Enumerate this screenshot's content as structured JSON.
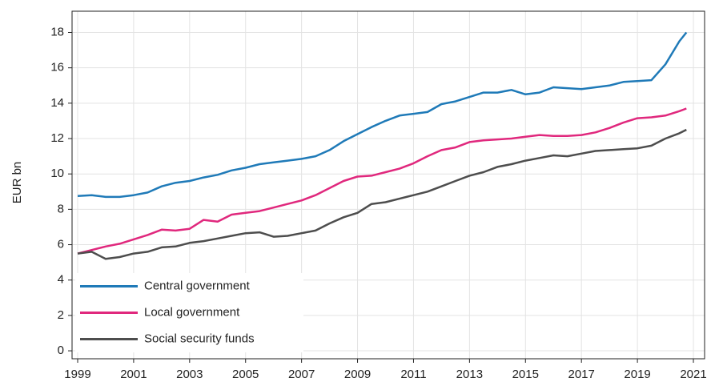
{
  "chart_data": {
    "type": "line",
    "y_label": "EUR bn",
    "x": [
      1999,
      1999.5,
      2000,
      2000.5,
      2001,
      2001.5,
      2002,
      2002.5,
      2003,
      2003.5,
      2004,
      2004.5,
      2005,
      2005.5,
      2006,
      2006.5,
      2007,
      2007.5,
      2008,
      2008.5,
      2009,
      2009.5,
      2010,
      2010.5,
      2011,
      2011.5,
      2012,
      2012.5,
      2013,
      2013.5,
      2014,
      2014.5,
      2015,
      2015.5,
      2016,
      2016.5,
      2017,
      2017.5,
      2018,
      2018.5,
      2019,
      2019.5,
      2020,
      2020.5,
      2020.75
    ],
    "series": [
      {
        "name": "Central government",
        "color": "#1f7ab8",
        "values": [
          8.75,
          8.8,
          8.7,
          8.7,
          8.8,
          8.95,
          9.3,
          9.5,
          9.6,
          9.8,
          9.95,
          10.2,
          10.35,
          10.55,
          10.65,
          10.75,
          10.85,
          11.0,
          11.35,
          11.85,
          12.25,
          12.65,
          13.0,
          13.3,
          13.4,
          13.5,
          13.95,
          14.1,
          14.35,
          14.6,
          14.6,
          14.75,
          14.5,
          14.6,
          14.9,
          14.85,
          14.8,
          14.9,
          15.0,
          15.2,
          15.25,
          15.3,
          16.2,
          17.5,
          18.0
        ]
      },
      {
        "name": "Local government",
        "color": "#e0287d",
        "values": [
          5.5,
          5.7,
          5.9,
          6.05,
          6.3,
          6.55,
          6.85,
          6.8,
          6.9,
          7.4,
          7.3,
          7.7,
          7.8,
          7.9,
          8.1,
          8.3,
          8.5,
          8.8,
          9.2,
          9.6,
          9.85,
          9.9,
          10.1,
          10.3,
          10.6,
          11.0,
          11.35,
          11.5,
          11.8,
          11.9,
          11.95,
          12.0,
          12.1,
          12.2,
          12.15,
          12.15,
          12.2,
          12.35,
          12.6,
          12.9,
          13.15,
          13.2,
          13.3,
          13.55,
          13.7
        ]
      },
      {
        "name": "Social security funds",
        "color": "#4d4d4d",
        "values": [
          5.5,
          5.6,
          5.2,
          5.3,
          5.5,
          5.6,
          5.85,
          5.9,
          6.1,
          6.2,
          6.35,
          6.5,
          6.65,
          6.7,
          6.45,
          6.5,
          6.65,
          6.8,
          7.2,
          7.55,
          7.8,
          8.3,
          8.4,
          8.6,
          8.8,
          9.0,
          9.3,
          9.6,
          9.9,
          10.1,
          10.4,
          10.55,
          10.75,
          10.9,
          11.05,
          11.0,
          11.15,
          11.3,
          11.35,
          11.4,
          11.45,
          11.6,
          12.0,
          12.3,
          12.5
        ]
      }
    ],
    "xlim": [
      1998.8,
      2021.4
    ],
    "xticks": [
      1999,
      2001,
      2003,
      2005,
      2007,
      2009,
      2011,
      2013,
      2015,
      2017,
      2019,
      2021
    ],
    "ylim": [
      -0.45,
      19.2
    ],
    "yticks": [
      0,
      2,
      4,
      6,
      8,
      10,
      12,
      14,
      16,
      18
    ],
    "grid": true,
    "legend": "lower left"
  }
}
